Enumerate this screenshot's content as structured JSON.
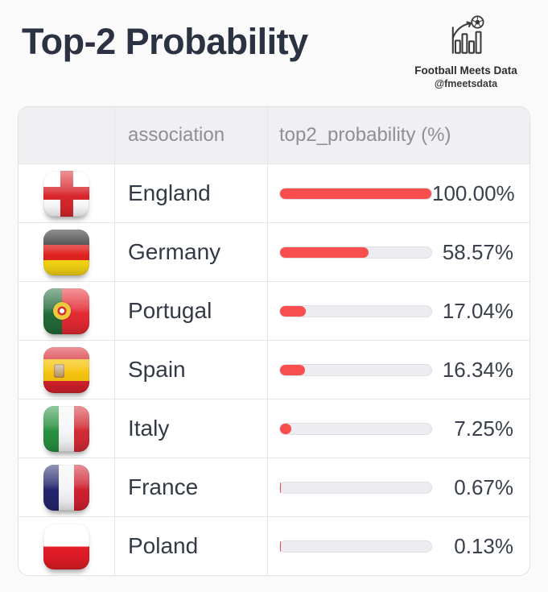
{
  "title": "Top-2 Probability",
  "brand": {
    "name": "Football Meets Data",
    "handle": "@fmeetsdata",
    "icon": "bar-chart-football-logo"
  },
  "colors": {
    "bar_fill": "#f84f4e",
    "bar_track": "#edecf1",
    "title_text": "#2b3241",
    "header_text": "#8f8f94",
    "body_text": "#333a45",
    "header_bg": "#f0f0f2",
    "grid_line": "#e6e6ea"
  },
  "table": {
    "headers": [
      "",
      "association",
      "top2_probability (%)"
    ],
    "rows": [
      {
        "flag": "england",
        "association": "England",
        "value": 100.0,
        "display": "100.00%"
      },
      {
        "flag": "germany",
        "association": "Germany",
        "value": 58.57,
        "display": "58.57%"
      },
      {
        "flag": "portugal",
        "association": "Portugal",
        "value": 17.04,
        "display": "17.04%"
      },
      {
        "flag": "spain",
        "association": "Spain",
        "value": 16.34,
        "display": "16.34%"
      },
      {
        "flag": "italy",
        "association": "Italy",
        "value": 7.25,
        "display": "7.25%"
      },
      {
        "flag": "france",
        "association": "France",
        "value": 0.67,
        "display": "0.67%"
      },
      {
        "flag": "poland",
        "association": "Poland",
        "value": 0.13,
        "display": "0.13%"
      }
    ]
  },
  "chart_data": {
    "type": "bar",
    "orientation": "horizontal",
    "title": "Top-2 Probability",
    "categories": [
      "England",
      "Germany",
      "Portugal",
      "Spain",
      "Italy",
      "France",
      "Poland"
    ],
    "values": [
      100.0,
      58.57,
      17.04,
      16.34,
      7.25,
      0.67,
      0.13
    ],
    "value_label": "top2_probability (%)",
    "xlim": [
      0,
      100
    ],
    "grid": false,
    "legend": false
  }
}
